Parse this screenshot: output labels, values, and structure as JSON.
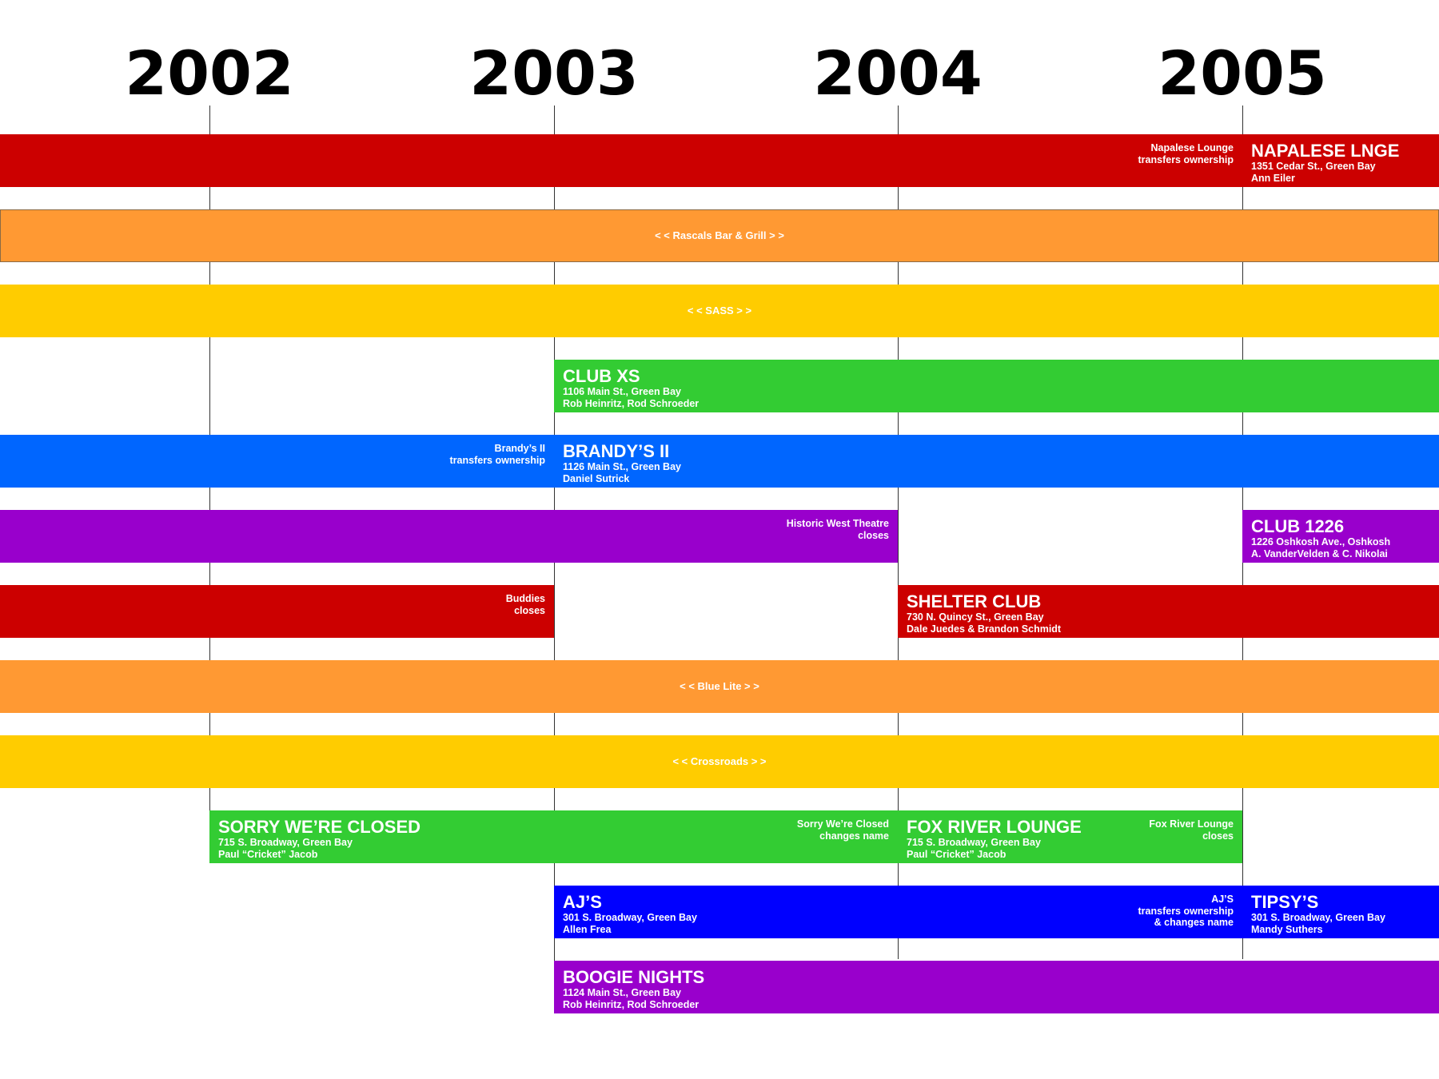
{
  "years": [
    "2002",
    "2003",
    "2004",
    "2005"
  ],
  "colors": {
    "red": "#cc0000",
    "orange": "#ff9933",
    "yellow": "#ffcc00",
    "green": "#33cc33",
    "sky_blue": "#0066ff",
    "purple": "#9900cc",
    "blue": "#0000ff",
    "vertical_line": "#333333"
  },
  "rows": [
    {
      "segments": [
        {
          "from": 2001.38,
          "to": 2005.0,
          "color": "red",
          "end_note": [
            "Napalese Lounge",
            "transfers ownership"
          ]
        },
        {
          "from": 2005.0,
          "to": 2005.6,
          "color": "red",
          "title": "NAPALESE LNGE",
          "lines": [
            "1351 Cedar St., Green Bay",
            "Ann Eiler"
          ]
        }
      ]
    },
    {
      "segments": [
        {
          "from": 2001.38,
          "to": 2005.6,
          "color": "orange",
          "outlined": true,
          "center": "<  <  Rascals Bar & Grill  >  >"
        }
      ]
    },
    {
      "segments": [
        {
          "from": 2001.38,
          "to": 2005.6,
          "color": "yellow",
          "center": "<  <  SASS  >  >"
        }
      ]
    },
    {
      "segments": [
        {
          "from": 2003.0,
          "to": 2005.6,
          "color": "green",
          "title": "CLUB XS",
          "lines": [
            "1106 Main St., Green Bay",
            "Rob Heinritz, Rod Schroeder"
          ]
        }
      ]
    },
    {
      "segments": [
        {
          "from": 2001.38,
          "to": 2003.0,
          "color": "sky_blue",
          "end_note": [
            "Brandy’s  II",
            "transfers ownership"
          ]
        },
        {
          "from": 2003.0,
          "to": 2005.6,
          "color": "sky_blue",
          "title": "BRANDY’S  II",
          "lines": [
            "1126 Main St., Green Bay",
            "Daniel Sutrick"
          ]
        }
      ]
    },
    {
      "segments": [
        {
          "from": 2001.38,
          "to": 2004.0,
          "color": "purple",
          "end_note": [
            "Historic West Theatre",
            "closes"
          ]
        },
        {
          "from": 2005.0,
          "to": 2005.6,
          "color": "purple",
          "title": "CLUB 1226",
          "lines": [
            "1226 Oshkosh Ave., Oshkosh",
            "A. VanderVelden & C. Nikolai"
          ]
        }
      ]
    },
    {
      "segments": [
        {
          "from": 2001.38,
          "to": 2003.0,
          "color": "red",
          "end_note": [
            "Buddies",
            "closes"
          ]
        },
        {
          "from": 2004.0,
          "to": 2005.6,
          "color": "red",
          "title": "SHELTER CLUB",
          "lines": [
            "730 N. Quincy St., Green Bay",
            "Dale Juedes & Brandon Schmidt"
          ]
        }
      ]
    },
    {
      "segments": [
        {
          "from": 2001.38,
          "to": 2005.6,
          "color": "orange",
          "center": "<  <  Blue Lite  >  >"
        }
      ]
    },
    {
      "segments": [
        {
          "from": 2001.38,
          "to": 2005.6,
          "color": "yellow",
          "center": "<  <  Crossroads  >  >"
        }
      ]
    },
    {
      "segments": [
        {
          "from": 2002.0,
          "to": 2004.0,
          "color": "green",
          "title": "SORRY WE’RE CLOSED",
          "lines": [
            "715 S. Broadway, Green Bay",
            "Paul “Cricket” Jacob"
          ],
          "end_note": [
            "Sorry We’re Closed",
            "changes name"
          ]
        },
        {
          "from": 2004.0,
          "to": 2005.0,
          "color": "green",
          "title": "FOX RIVER LOUNGE",
          "lines": [
            "715 S. Broadway, Green Bay",
            "Paul “Cricket” Jacob"
          ],
          "end_note": [
            "Fox River Lounge",
            "closes"
          ]
        }
      ]
    },
    {
      "segments": [
        {
          "from": 2003.0,
          "to": 2005.0,
          "color": "blue",
          "title": "AJ’S",
          "lines": [
            "301 S. Broadway, Green Bay",
            "Allen Frea"
          ],
          "end_note": [
            "AJ’S",
            "transfers ownership",
            "& changes name"
          ]
        },
        {
          "from": 2005.0,
          "to": 2005.6,
          "color": "blue",
          "title": "TIPSY’S",
          "lines": [
            "301 S. Broadway, Green Bay",
            "Mandy Suthers"
          ]
        }
      ]
    },
    {
      "segments": [
        {
          "from": 2003.0,
          "to": 2005.6,
          "color": "purple",
          "title": "BOOGIE NIGHTS",
          "lines": [
            "1124 Main St., Green Bay",
            "Rob Heinritz, Rod Schroeder"
          ]
        }
      ]
    }
  ]
}
